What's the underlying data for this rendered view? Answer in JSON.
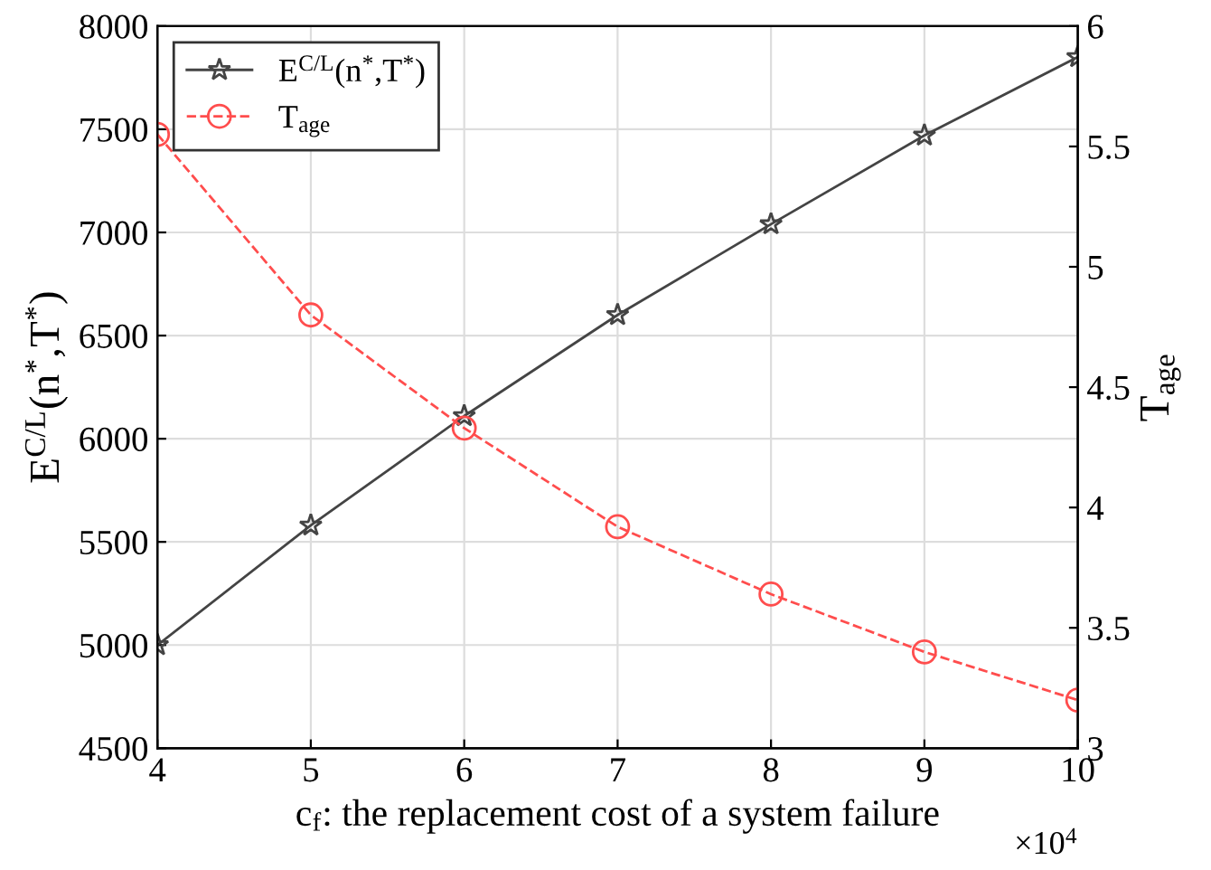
{
  "chart_data": {
    "type": "line",
    "xlabel": "c$_{f}$: the replacement cost of a system failure",
    "ylabel": "E$^{C/L}$(n$^{*}$,T$^{*}$)",
    "y2label": "T$_{age}$",
    "x": [
      4,
      5,
      6,
      7,
      8,
      9,
      10
    ],
    "series": [
      {
        "name": "E$^{C/L}$(n$^{*}$,T$^{*}$)",
        "color": "#444444",
        "marker": "star",
        "line_style": "solid",
        "values": [
          5000,
          5580,
          6110,
          6600,
          7040,
          7470,
          7850
        ]
      },
      {
        "name": "T$_{age}$",
        "color": "#ff4d4d",
        "marker": "circle",
        "line_style": "dashed",
        "axis": "y2",
        "values": [
          5.55,
          4.8,
          4.33,
          3.92,
          3.64,
          3.4,
          3.2
        ]
      }
    ],
    "xlim": [
      4,
      10
    ],
    "xticks": [
      4,
      5,
      6,
      7,
      8,
      9,
      10
    ],
    "ylim": [
      4500,
      8000
    ],
    "yticks": [
      4500,
      5000,
      5500,
      6000,
      6500,
      7000,
      7500,
      8000
    ],
    "y2lim": [
      3,
      6
    ],
    "y2ticks": [
      3,
      {
        "value": 3.5,
        "label": "3.5"
      },
      4,
      {
        "value": 4.5,
        "label": "4.5"
      },
      5,
      {
        "value": 5.5,
        "label": "5.5"
      },
      6
    ],
    "annotations": [
      "×10$^{4}$"
    ],
    "grid": true,
    "legend": "top left"
  }
}
